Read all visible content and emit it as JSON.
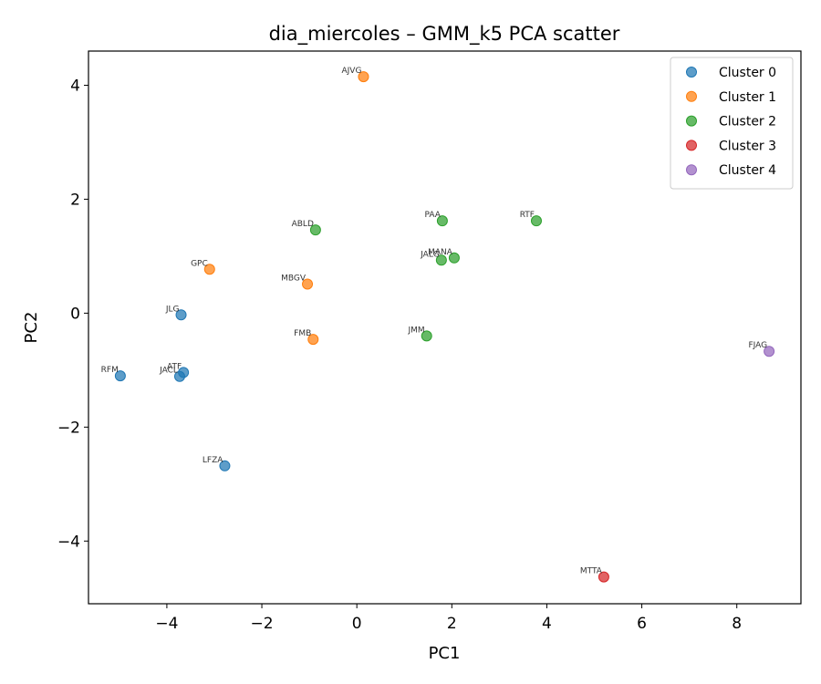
{
  "chart_data": {
    "type": "scatter",
    "title": "dia_miercoles – GMM_k5 PCA scatter",
    "xlabel": "PC1",
    "ylabel": "PC2",
    "xlim": [
      -5.65,
      9.35
    ],
    "ylim": [
      -5.1,
      4.6
    ],
    "xticks": [
      -4,
      -2,
      0,
      2,
      4,
      6,
      8
    ],
    "yticks": [
      -4,
      -2,
      0,
      2,
      4
    ],
    "grid": false,
    "legend_position": "top-right",
    "series": [
      {
        "name": "Cluster 0",
        "color": "#1f77b4",
        "points": [
          {
            "label": "JLG",
            "x": -3.7,
            "y": -0.03
          },
          {
            "label": "RFM",
            "x": -4.98,
            "y": -1.1
          },
          {
            "label": "ATF",
            "x": -3.65,
            "y": -1.04
          },
          {
            "label": "JACL",
            "x": -3.73,
            "y": -1.11
          },
          {
            "label": "LFZA",
            "x": -2.78,
            "y": -2.68
          }
        ]
      },
      {
        "name": "Cluster 1",
        "color": "#ff7f0e",
        "points": [
          {
            "label": "AJVG",
            "x": 0.14,
            "y": 4.15
          },
          {
            "label": "GPC",
            "x": -3.1,
            "y": 0.77
          },
          {
            "label": "MBGV",
            "x": -1.04,
            "y": 0.51
          },
          {
            "label": "FMB",
            "x": -0.92,
            "y": -0.46
          }
        ]
      },
      {
        "name": "Cluster 2",
        "color": "#2ca02c",
        "points": [
          {
            "label": "ABLD",
            "x": -0.87,
            "y": 1.46
          },
          {
            "label": "PAA",
            "x": 1.8,
            "y": 1.62
          },
          {
            "label": "RTF",
            "x": 3.78,
            "y": 1.62
          },
          {
            "label": "JALG",
            "x": 1.78,
            "y": 0.93
          },
          {
            "label": "MANA",
            "x": 2.05,
            "y": 0.97
          },
          {
            "label": "JMM",
            "x": 1.47,
            "y": -0.4
          }
        ]
      },
      {
        "name": "Cluster 3",
        "color": "#d62728",
        "points": [
          {
            "label": "MTTA",
            "x": 5.2,
            "y": -4.63
          }
        ]
      },
      {
        "name": "Cluster 4",
        "color": "#9467bd",
        "points": [
          {
            "label": "FJAG",
            "x": 8.68,
            "y": -0.67
          }
        ]
      }
    ]
  }
}
